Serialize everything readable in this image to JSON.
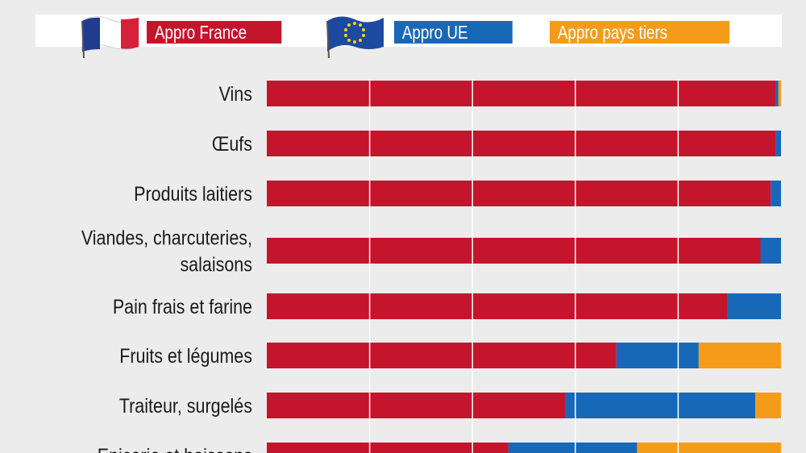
{
  "legend": {
    "france": {
      "label": "Appro France",
      "color": "#c4152d",
      "icon": "france-flag-icon"
    },
    "ue": {
      "label": "Appro UE",
      "color": "#1868b8",
      "icon": "eu-flag-icon"
    },
    "tiers": {
      "label": "Appro  pays tiers",
      "color": "#f49c1a"
    }
  },
  "chart_data": {
    "type": "bar",
    "orientation": "horizontal",
    "stacked": true,
    "categories": [
      [
        "Vins"
      ],
      [
        "Œufs"
      ],
      [
        "Produits laitiers"
      ],
      [
        "Viandes, charcuteries,",
        "salaisons"
      ],
      [
        "Pain frais et farine"
      ],
      [
        "Fruits et légumes"
      ],
      [
        "Traiteur, surgelés"
      ],
      [
        "Epicerie et boissons"
      ]
    ],
    "series": [
      {
        "name": "Appro France",
        "color": "#c4152d",
        "values": [
          99.0,
          99.0,
          98.0,
          96.0,
          89.5,
          68.0,
          58.0,
          47.0
        ]
      },
      {
        "name": "Appro UE",
        "color": "#1868b8",
        "values": [
          0.5,
          1.0,
          2.0,
          4.0,
          10.5,
          16.0,
          37.0,
          25.0
        ]
      },
      {
        "name": "Appro  pays tiers",
        "color": "#f49c1a",
        "values": [
          0.5,
          0.0,
          0.0,
          0.0,
          0.0,
          16.0,
          5.0,
          28.0
        ]
      }
    ],
    "xlim": [
      0,
      100
    ],
    "grid": true
  }
}
